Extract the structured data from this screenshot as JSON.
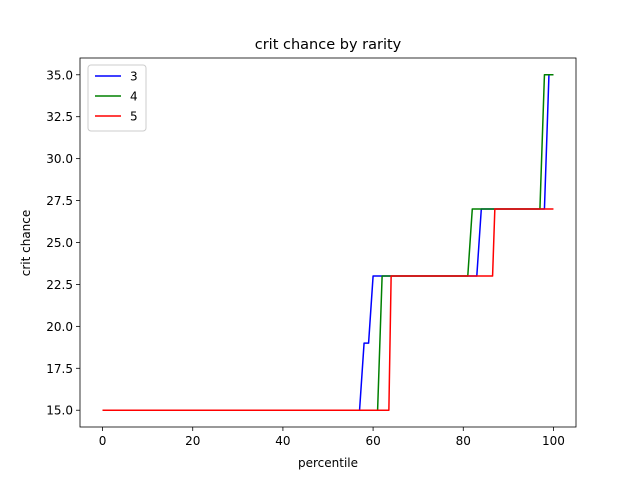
{
  "chart_data": {
    "type": "line",
    "title": "crit chance by rarity",
    "xlabel": "percentile",
    "ylabel": "crit chance",
    "xlim": [
      -5,
      105
    ],
    "ylim": [
      14.0,
      36.0
    ],
    "xticks": [
      0,
      20,
      40,
      60,
      80,
      100
    ],
    "yticks": [
      15.0,
      17.5,
      20.0,
      22.5,
      25.0,
      27.5,
      30.0,
      32.5,
      35.0
    ],
    "xtick_labels": [
      "0",
      "20",
      "40",
      "60",
      "80",
      "100"
    ],
    "ytick_labels": [
      "15.0",
      "17.5",
      "20.0",
      "22.5",
      "25.0",
      "27.5",
      "30.0",
      "32.5",
      "35.0"
    ],
    "grid": false,
    "legend_position": "top-left",
    "series": [
      {
        "name": "3",
        "color": "#0000ff",
        "x": [
          0,
          57,
          58,
          59,
          60,
          83,
          84,
          98,
          99,
          100
        ],
        "y": [
          15,
          15,
          19,
          19,
          23,
          23,
          27,
          27,
          35,
          35
        ]
      },
      {
        "name": "4",
        "color": "#008000",
        "x": [
          0,
          61,
          62,
          81,
          82,
          97,
          98,
          100
        ],
        "y": [
          15,
          15,
          23,
          23,
          27,
          27,
          35,
          35
        ]
      },
      {
        "name": "5",
        "color": "#ff0000",
        "x": [
          0,
          63.5,
          64,
          86.5,
          87,
          100
        ],
        "y": [
          15,
          15,
          23,
          23,
          27,
          27
        ]
      }
    ]
  }
}
